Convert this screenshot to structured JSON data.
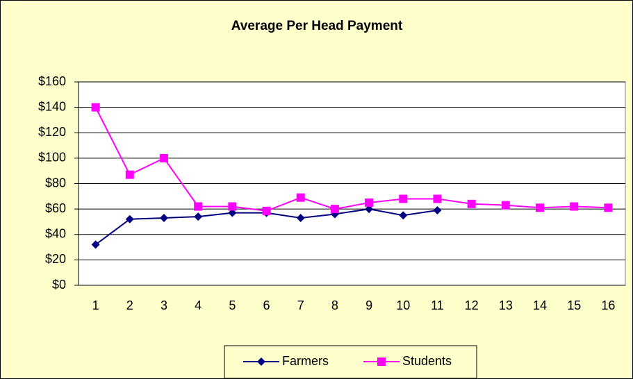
{
  "chart_data": {
    "type": "line",
    "title": "Average Per Head Payment",
    "categories": [
      1,
      2,
      3,
      4,
      5,
      6,
      7,
      8,
      9,
      10,
      11,
      12,
      13,
      14,
      15,
      16
    ],
    "series": [
      {
        "name": "Farmers",
        "color": "#000080",
        "marker": "diamond",
        "values": [
          32,
          52,
          53,
          54,
          57,
          57,
          53,
          56,
          60,
          55,
          59,
          null,
          null,
          null,
          null,
          null
        ]
      },
      {
        "name": "Students",
        "color": "#FF00FF",
        "marker": "square",
        "values": [
          140,
          87,
          100,
          62,
          62,
          58.5,
          69,
          60,
          65,
          68,
          68,
          64,
          63,
          61,
          62,
          61
        ]
      }
    ],
    "ylim": [
      0,
      160
    ],
    "yticks": [
      {
        "value": 0,
        "label": "$0"
      },
      {
        "value": 20,
        "label": "$20"
      },
      {
        "value": 40,
        "label": "$40"
      },
      {
        "value": 60,
        "label": "$60"
      },
      {
        "value": 80,
        "label": "$80"
      },
      {
        "value": 100,
        "label": "$100"
      },
      {
        "value": 120,
        "label": "$120"
      },
      {
        "value": 140,
        "label": "$140"
      },
      {
        "value": 160,
        "label": "$160"
      }
    ],
    "grid": true,
    "legend": "bottom"
  }
}
